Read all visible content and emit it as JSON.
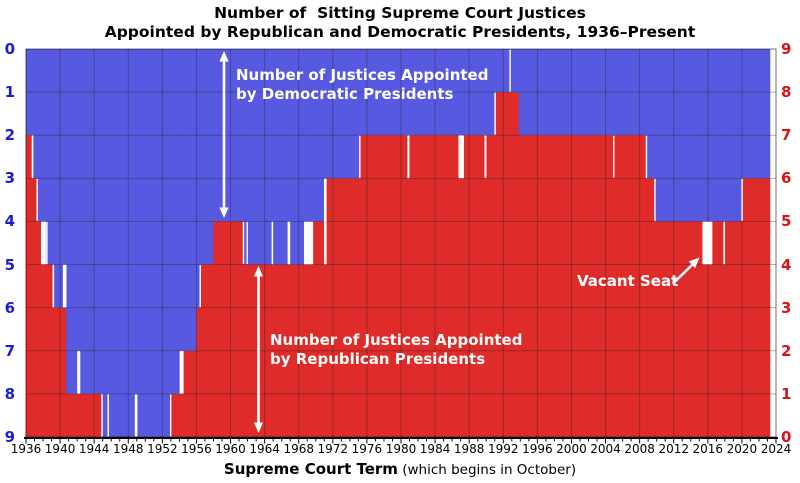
{
  "title": {
    "line1": "Number of  Sitting Supreme Court Justices",
    "line2": "Appointed by Republican and Democratic Presidents, 1936–Present"
  },
  "axes": {
    "left_labels": [
      "0",
      "1",
      "2",
      "3",
      "4",
      "5",
      "6",
      "7",
      "8",
      "9"
    ],
    "right_labels": [
      "9",
      "8",
      "7",
      "6",
      "5",
      "4",
      "3",
      "2",
      "1",
      "0"
    ],
    "x_tick_labels": [
      "1936",
      "1940",
      "1944",
      "1948",
      "1952",
      "1956",
      "1960",
      "1964",
      "1968",
      "1972",
      "1976",
      "1980",
      "1984",
      "1988",
      "1992",
      "1996",
      "2000",
      "2004",
      "2008",
      "2012",
      "2016",
      "2020",
      "2024"
    ],
    "x_title_bold": "Supreme Court Term",
    "x_title_normal": " (which begins in October)"
  },
  "annotations": {
    "dem_line1": "Number of Justices Appointed",
    "dem_line2": "by Democratic Presidents",
    "rep_line1": "Number of Justices Appointed",
    "rep_line2": "by Republican Presidents",
    "vacant_label": "Vacant Seat"
  },
  "colors": {
    "democratic_fill": "#5859E1",
    "republican_fill": "#E02B2B",
    "vacant_fill": "#FFFFFF",
    "left_axis_text": "#1C1CD2",
    "right_axis_text": "#D81414",
    "grid_line": "rgba(30,30,30,0.35)",
    "plot_border": "rgba(0,0,0,0.55)",
    "axis_line": "#000000",
    "annotation_text": "#FFFFFF",
    "title_text": "#000000"
  },
  "chart_data": {
    "type": "area",
    "title": "Number of Sitting Supreme Court Justices Appointed by Republican and Democratic Presidents, 1936–Present",
    "xlabel": "Supreme Court Term (which begins in October)",
    "x_range": [
      1936,
      2024
    ],
    "y_range": [
      0,
      9
    ],
    "grid": true,
    "left_axis_meaning": "Justices appointed by Democratic presidents, blue area counted down from top",
    "right_axis_meaning": "Justices appointed by Republican presidents, red area counted up from bottom",
    "vacancy_meaning": "White gap between blue and red = vacant seat (dem + rep < 9)",
    "segments_format": [
      "term_start_year",
      "term_end_year",
      "democratic_appointees",
      "republican_appointees"
    ],
    "segments": [
      [
        1936.0,
        1936.67,
        2,
        7
      ],
      [
        1936.67,
        1936.86,
        2,
        6
      ],
      [
        1936.86,
        1937.3,
        3,
        6
      ],
      [
        1937.3,
        1937.33,
        3,
        5
      ],
      [
        1937.33,
        1937.77,
        4,
        5
      ],
      [
        1937.77,
        1938.33,
        4,
        4
      ],
      [
        1938.33,
        1938.37,
        5,
        4
      ],
      [
        1938.37,
        1938.54,
        4,
        4
      ],
      [
        1938.54,
        1939.12,
        5,
        4
      ],
      [
        1939.12,
        1939.3,
        5,
        3
      ],
      [
        1939.3,
        1940.33,
        6,
        3
      ],
      [
        1940.33,
        1940.75,
        5,
        3
      ],
      [
        1940.75,
        1942.01,
        8,
        1
      ],
      [
        1942.01,
        1942.37,
        7,
        1
      ],
      [
        1942.37,
        1944.83,
        8,
        1
      ],
      [
        1944.83,
        1945.0,
        8,
        0
      ],
      [
        1945.0,
        1945.56,
        9,
        0
      ],
      [
        1945.56,
        1945.73,
        8,
        0
      ],
      [
        1945.73,
        1948.8,
        9,
        0
      ],
      [
        1948.8,
        1948.9,
        8,
        0
      ],
      [
        1948.9,
        1948.95,
        9,
        0
      ],
      [
        1948.95,
        1949.03,
        8,
        0
      ],
      [
        1949.03,
        1952.94,
        9,
        0
      ],
      [
        1952.94,
        1953.01,
        8,
        0
      ],
      [
        1953.01,
        1954.03,
        8,
        1
      ],
      [
        1954.03,
        1954.49,
        7,
        1
      ],
      [
        1954.49,
        1956.04,
        7,
        2
      ],
      [
        1956.04,
        1956.41,
        6,
        3
      ],
      [
        1956.41,
        1956.48,
        5,
        3
      ],
      [
        1956.48,
        1958.01,
        5,
        4
      ],
      [
        1958.01,
        1961.5,
        4,
        5
      ],
      [
        1961.5,
        1961.54,
        4,
        4
      ],
      [
        1961.54,
        1961.91,
        5,
        4
      ],
      [
        1961.91,
        1962.0,
        4,
        4
      ],
      [
        1962.0,
        1964.82,
        5,
        4
      ],
      [
        1964.82,
        1965.0,
        4,
        4
      ],
      [
        1965.0,
        1966.7,
        5,
        4
      ],
      [
        1966.7,
        1967.0,
        4,
        4
      ],
      [
        1967.0,
        1968.62,
        5,
        4
      ],
      [
        1968.62,
        1969.69,
        4,
        4
      ],
      [
        1969.69,
        1970.97,
        4,
        5
      ],
      [
        1970.97,
        1971.27,
        3,
        4
      ],
      [
        1971.27,
        1975.12,
        3,
        6
      ],
      [
        1975.12,
        1975.22,
        2,
        6
      ],
      [
        1975.22,
        1980.75,
        2,
        7
      ],
      [
        1980.75,
        1980.99,
        2,
        6
      ],
      [
        1980.99,
        1986.74,
        2,
        7
      ],
      [
        1986.74,
        1987.38,
        2,
        6
      ],
      [
        1987.38,
        1989.8,
        2,
        7
      ],
      [
        1989.8,
        1990.02,
        2,
        6
      ],
      [
        1990.02,
        1991.0,
        2,
        7
      ],
      [
        1991.0,
        1991.08,
        1,
        7
      ],
      [
        1991.08,
        1992.74,
        1,
        8
      ],
      [
        1992.74,
        1992.86,
        0,
        8
      ],
      [
        1992.86,
        1993.84,
        1,
        8
      ],
      [
        1993.84,
        2004.93,
        2,
        7
      ],
      [
        2004.93,
        2004.99,
        2,
        6
      ],
      [
        2004.99,
        2008.75,
        2,
        7
      ],
      [
        2008.75,
        2008.85,
        2,
        6
      ],
      [
        2008.85,
        2009.74,
        3,
        6
      ],
      [
        2009.74,
        2009.85,
        3,
        5
      ],
      [
        2009.85,
        2015.37,
        4,
        5
      ],
      [
        2015.37,
        2016.53,
        4,
        4
      ],
      [
        2016.53,
        2017.83,
        4,
        5
      ],
      [
        2017.83,
        2018.02,
        4,
        4
      ],
      [
        2018.02,
        2019.97,
        4,
        5
      ],
      [
        2019.97,
        2020.07,
        3,
        5
      ],
      [
        2020.07,
        2023.3,
        3,
        6
      ]
    ]
  }
}
